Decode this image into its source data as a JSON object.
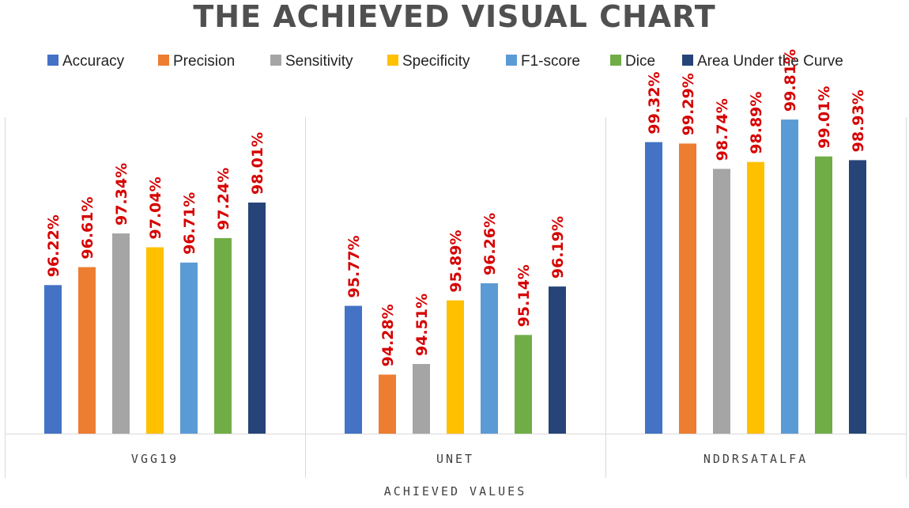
{
  "chart_data": {
    "type": "bar",
    "title": "THE ACHIEVED VISUAL CHART",
    "xlabel": "ACHIEVED VALUES",
    "ylabel": "",
    "ylim": [
      93,
      100
    ],
    "grid": false,
    "legend_position": "top",
    "categories": [
      "VGG19",
      "UNET",
      "NDDRSATALFA"
    ],
    "series": [
      {
        "name": "Accuracy",
        "color": "#4472c4",
        "values": [
          96.22,
          95.77,
          99.32
        ],
        "labels": [
          "96.22%",
          "95.77%",
          "99.32%"
        ]
      },
      {
        "name": "Precision",
        "color": "#ed7d31",
        "values": [
          96.61,
          94.28,
          99.29
        ],
        "labels": [
          "96.61%",
          "94.28%",
          "99.29%"
        ]
      },
      {
        "name": "Sensitivity",
        "color": "#a5a5a5",
        "values": [
          97.34,
          94.51,
          98.74
        ],
        "labels": [
          "97.34%",
          "94.51%",
          "98.74%"
        ]
      },
      {
        "name": "Specificity",
        "color": "#ffc000",
        "values": [
          97.04,
          95.89,
          98.89
        ],
        "labels": [
          "97.04%",
          "95.89%",
          "98.89%"
        ]
      },
      {
        "name": "F1-score",
        "color": "#5b9bd5",
        "values": [
          96.71,
          96.26,
          99.81
        ],
        "labels": [
          "96.71%",
          "96.26%",
          "99.81%"
        ]
      },
      {
        "name": "Dice",
        "color": "#70ad47",
        "values": [
          97.24,
          95.14,
          99.01
        ],
        "labels": [
          "97.24%",
          "95.14%",
          "99.01%"
        ]
      },
      {
        "name": "Area Under the Curve",
        "color": "#264478",
        "values": [
          98.01,
          96.19,
          98.93
        ],
        "labels": [
          "98.01%",
          "96.19%",
          "98.93%"
        ]
      }
    ]
  }
}
